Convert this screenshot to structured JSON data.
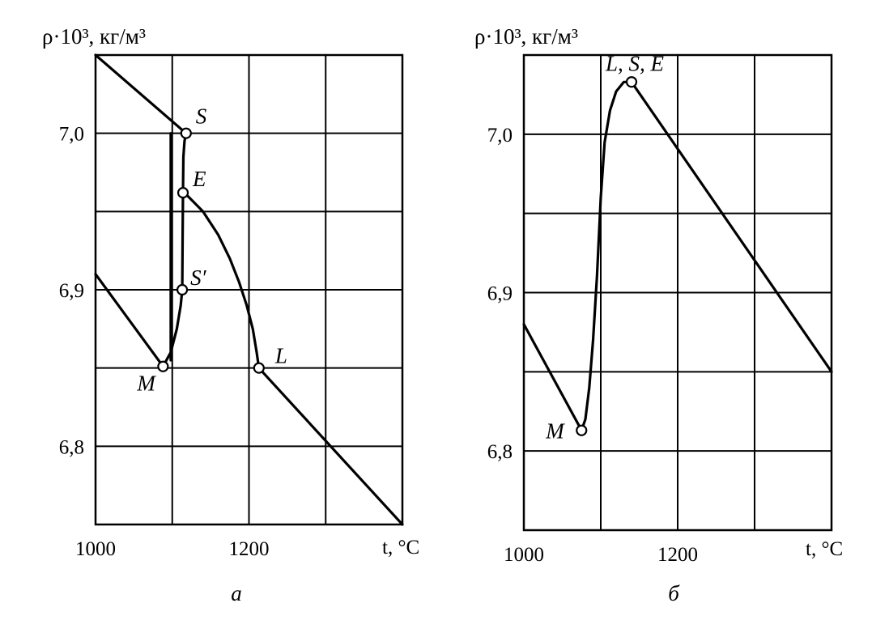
{
  "chart_data": [
    {
      "type": "line",
      "panel_label": "а",
      "ylabel": "ρ·10³, кг/м³",
      "xlabel": "t, °C",
      "xlim": [
        1000,
        1400
      ],
      "ylim": [
        6.75,
        7.05
      ],
      "x_ticks": [
        1000,
        1100,
        1200,
        1300,
        1400
      ],
      "x_tick_labels": [
        "1000",
        "",
        "1200",
        "",
        ""
      ],
      "y_ticks": [
        6.75,
        6.8,
        6.85,
        6.9,
        6.95,
        7.0,
        7.05
      ],
      "y_tick_labels": [
        "",
        "6,8",
        "",
        "6,9",
        "",
        "7,0",
        ""
      ],
      "grid": true,
      "series": [
        {
          "x": [
            1000,
            1118
          ],
          "y": [
            7.05,
            7.0
          ]
        },
        {
          "x": [
            1000,
            1088
          ],
          "y": [
            6.91,
            6.851
          ]
        },
        {
          "x": [
            1088,
            1098,
            1106,
            1111,
            1113,
            1113.5,
            1114,
            1114.5,
            1116,
            1118
          ],
          "y": [
            6.851,
            6.86,
            6.875,
            6.89,
            6.9,
            6.93,
            6.962,
            6.985,
            6.995,
            7.0
          ]
        },
        {
          "x": [
            1116,
            1140,
            1160,
            1175,
            1187,
            1197,
            1205,
            1210,
            1213
          ],
          "y": [
            6.962,
            6.95,
            6.935,
            6.92,
            6.905,
            6.89,
            6.875,
            6.86,
            6.85
          ]
        },
        {
          "x": [
            1213,
            1400
          ],
          "y": [
            6.85,
            6.75
          ]
        },
        {
          "x": [
            1098,
            1098
          ],
          "y": [
            6.855,
            7.0
          ]
        }
      ],
      "points": [
        {
          "label": "S",
          "x": 1118,
          "y": 7.0
        },
        {
          "label": "E",
          "x": 1114,
          "y": 6.962
        },
        {
          "label": "S′",
          "x": 1113,
          "y": 6.9
        },
        {
          "label": "M",
          "x": 1088,
          "y": 6.851
        },
        {
          "label": "L",
          "x": 1213,
          "y": 6.85
        }
      ]
    },
    {
      "type": "line",
      "panel_label": "б",
      "ylabel": "ρ·10³, кг/м³",
      "xlabel": "t, °C",
      "xlim": [
        1000,
        1400
      ],
      "ylim": [
        6.75,
        7.05
      ],
      "x_ticks": [
        1000,
        1100,
        1200,
        1300,
        1400
      ],
      "x_tick_labels": [
        "1000",
        "",
        "1200",
        "",
        ""
      ],
      "y_ticks": [
        6.75,
        6.8,
        6.85,
        6.9,
        6.95,
        7.0,
        7.05
      ],
      "y_tick_labels": [
        "",
        "6,8",
        "",
        "6,9",
        "",
        "7,0",
        ""
      ],
      "grid": true,
      "series": [
        {
          "x": [
            1000,
            1075
          ],
          "y": [
            6.88,
            6.813
          ]
        },
        {
          "x": [
            1075,
            1080,
            1085,
            1090,
            1095,
            1100,
            1105,
            1112,
            1120,
            1130,
            1140
          ],
          "y": [
            6.813,
            6.82,
            6.84,
            6.87,
            6.91,
            6.96,
            6.995,
            7.015,
            7.027,
            7.033,
            7.033
          ]
        },
        {
          "x": [
            1140,
            1400
          ],
          "y": [
            7.033,
            6.85
          ]
        }
      ],
      "points": [
        {
          "label": "L, S, E",
          "x": 1140,
          "y": 7.033
        },
        {
          "label": "M",
          "x": 1075,
          "y": 6.813
        }
      ]
    }
  ]
}
